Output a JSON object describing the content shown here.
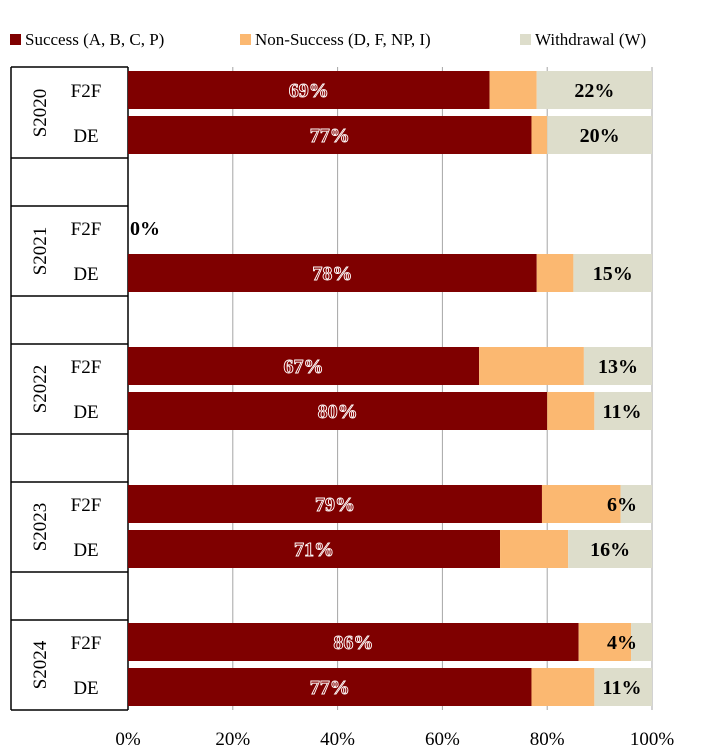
{
  "chart_data": {
    "type": "bar",
    "orientation": "horizontal",
    "stacked": true,
    "percent_stacked": true,
    "title": "",
    "xlabel": "",
    "ylabel": "",
    "xlim": [
      0,
      100
    ],
    "x_ticks": [
      "0%",
      "20%",
      "40%",
      "60%",
      "80%",
      "100%"
    ],
    "grid": true,
    "legend_position": "top",
    "legend": [
      {
        "name": "Success (A, B, C, P)",
        "color": "#7f0000"
      },
      {
        "name": "Non-Success (D, F, NP, I)",
        "color": "#fbb871"
      },
      {
        "name": "Withdrawal (W)",
        "color": "#ddddcb"
      }
    ],
    "groups": [
      {
        "year": "S2020",
        "rows": [
          {
            "category": "F2F",
            "values": [
              69,
              9,
              22
            ],
            "labels": [
              "69%",
              "",
              "22%"
            ]
          },
          {
            "category": "DE",
            "values": [
              77,
              3,
              20
            ],
            "labels": [
              "77%",
              "",
              "20%"
            ]
          }
        ]
      },
      {
        "year": "S2021",
        "rows": [
          {
            "category": "F2F",
            "values": [
              0,
              0,
              0
            ],
            "labels": [
              "0%",
              "",
              ""
            ]
          },
          {
            "category": "DE",
            "values": [
              78,
              7,
              15
            ],
            "labels": [
              "78%",
              "",
              "15%"
            ]
          }
        ]
      },
      {
        "year": "S2022",
        "rows": [
          {
            "category": "F2F",
            "values": [
              67,
              20,
              13
            ],
            "labels": [
              "67%",
              "",
              "13%"
            ]
          },
          {
            "category": "DE",
            "values": [
              80,
              9,
              11
            ],
            "labels": [
              "80%",
              "",
              "11%"
            ]
          }
        ]
      },
      {
        "year": "S2023",
        "rows": [
          {
            "category": "F2F",
            "values": [
              79,
              15,
              6
            ],
            "labels": [
              "79%",
              "",
              "6%"
            ]
          },
          {
            "category": "DE",
            "values": [
              71,
              13,
              16
            ],
            "labels": [
              "71%",
              "",
              "16%"
            ]
          }
        ]
      },
      {
        "year": "S2024",
        "rows": [
          {
            "category": "F2F",
            "values": [
              86,
              10,
              4
            ],
            "labels": [
              "86%",
              "",
              "4%"
            ]
          },
          {
            "category": "DE",
            "values": [
              77,
              12,
              11
            ],
            "labels": [
              "77%",
              "",
              "11%"
            ]
          }
        ]
      }
    ]
  }
}
